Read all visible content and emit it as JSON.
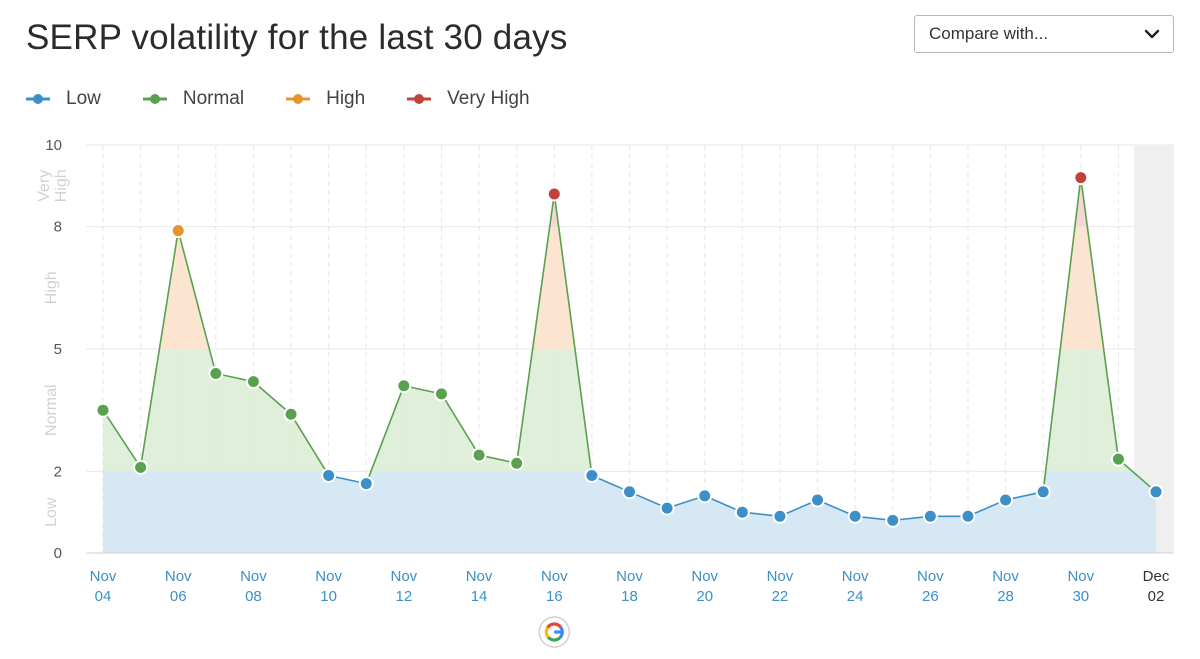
{
  "title": "SERP volatility for the last 30 days",
  "compare": {
    "label": "Compare with...",
    "icon": "chevron-down-icon"
  },
  "legend": [
    {
      "label": "Low",
      "color": "#3d8fc7"
    },
    {
      "label": "Normal",
      "color": "#59a14f"
    },
    {
      "label": "High",
      "color": "#e8942e"
    },
    {
      "label": "Very High",
      "color": "#c0433a"
    }
  ],
  "chart_data": {
    "type": "area",
    "title": "SERP volatility for the last 30 days",
    "ylim": [
      0,
      10
    ],
    "y_ticks": [
      0,
      2,
      5,
      8,
      10
    ],
    "bands": [
      {
        "label": "Low",
        "from": 0,
        "to": 2,
        "color": "#d3e6f4"
      },
      {
        "label": "Normal",
        "from": 2,
        "to": 5,
        "color": "#dbedd6"
      },
      {
        "label": "High",
        "from": 5,
        "to": 8,
        "color": "#fbe2cc"
      },
      {
        "label": "Very High",
        "from": 8,
        "to": 10,
        "color": "#f6d3d1"
      }
    ],
    "band_labels": [
      {
        "label": "Low",
        "from": 0,
        "to": 2
      },
      {
        "label": "Normal",
        "from": 2,
        "to": 5
      },
      {
        "label": "High",
        "from": 5,
        "to": 8
      },
      {
        "label": "Very High",
        "from": 8,
        "to": 10
      }
    ],
    "x": [
      "Nov 04",
      "Nov 05",
      "Nov 06",
      "Nov 07",
      "Nov 08",
      "Nov 09",
      "Nov 10",
      "Nov 11",
      "Nov 12",
      "Nov 13",
      "Nov 14",
      "Nov 15",
      "Nov 16",
      "Nov 17",
      "Nov 18",
      "Nov 19",
      "Nov 20",
      "Nov 21",
      "Nov 22",
      "Nov 23",
      "Nov 24",
      "Nov 25",
      "Nov 26",
      "Nov 27",
      "Nov 28",
      "Nov 29",
      "Nov 30",
      "Dec 01",
      "Dec 02"
    ],
    "values": [
      3.5,
      2.1,
      7.9,
      4.4,
      4.2,
      3.4,
      1.9,
      1.7,
      4.1,
      3.9,
      2.4,
      2.2,
      8.8,
      1.9,
      1.5,
      1.1,
      1.4,
      1.0,
      0.9,
      1.3,
      0.9,
      0.8,
      0.9,
      0.9,
      1.3,
      1.5,
      9.2,
      2.3,
      1.5
    ],
    "x_tick_labels": [
      {
        "month": "Nov",
        "day": "04"
      },
      {
        "month": "Nov",
        "day": "06"
      },
      {
        "month": "Nov",
        "day": "08"
      },
      {
        "month": "Nov",
        "day": "10"
      },
      {
        "month": "Nov",
        "day": "12"
      },
      {
        "month": "Nov",
        "day": "14"
      },
      {
        "month": "Nov",
        "day": "16"
      },
      {
        "month": "Nov",
        "day": "18"
      },
      {
        "month": "Nov",
        "day": "20"
      },
      {
        "month": "Nov",
        "day": "22"
      },
      {
        "month": "Nov",
        "day": "24"
      },
      {
        "month": "Nov",
        "day": "26"
      },
      {
        "month": "Nov",
        "day": "28"
      },
      {
        "month": "Nov",
        "day": "30"
      },
      {
        "month": "Dec",
        "day": "02"
      }
    ],
    "x_tick_indices": [
      0,
      2,
      4,
      6,
      8,
      10,
      12,
      14,
      16,
      18,
      20,
      22,
      24,
      26,
      28
    ],
    "highlight_last_day": true,
    "google_update_marker": {
      "label": "G",
      "at": "Nov 16",
      "icon": "google-icon"
    },
    "level_colors": {
      "Low": "#3d8fc7",
      "Normal": "#59a14f",
      "High": "#e8942e",
      "Very High": "#c0433a"
    },
    "line_colors": {
      "Low": "#3d8fc7",
      "Normal": "#59a14f",
      "High": "#e8942e",
      "Very High": "#c0433a"
    },
    "grid": true
  }
}
